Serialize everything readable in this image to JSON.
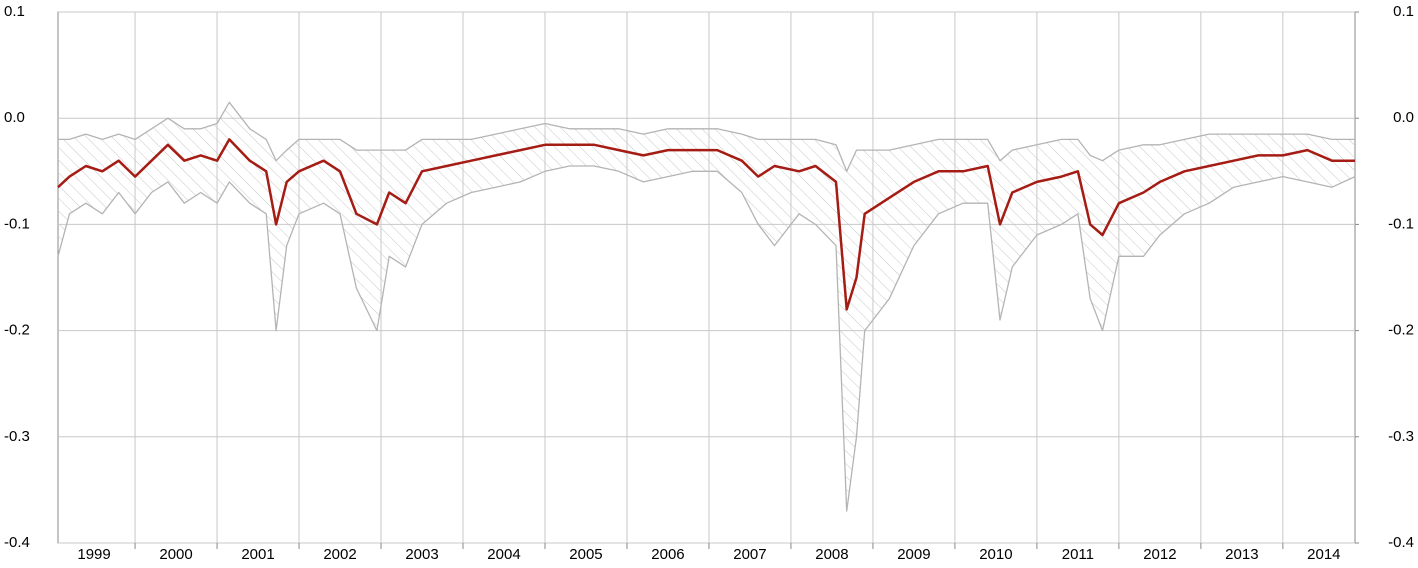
{
  "chart_data": {
    "type": "line",
    "x": [
      1999.06,
      1999.2,
      1999.4,
      1999.6,
      1999.8,
      2000.0,
      2000.2,
      2000.4,
      2000.6,
      2000.8,
      2001.0,
      2001.15,
      2001.4,
      2001.6,
      2001.72,
      2001.85,
      2002.0,
      2002.3,
      2002.5,
      2002.7,
      2002.95,
      2003.1,
      2003.3,
      2003.5,
      2003.8,
      2004.1,
      2004.4,
      2004.7,
      2005.0,
      2005.3,
      2005.6,
      2005.9,
      2006.2,
      2006.5,
      2006.8,
      2007.1,
      2007.4,
      2007.6,
      2007.8,
      2008.1,
      2008.3,
      2008.55,
      2008.68,
      2008.8,
      2008.9,
      2009.2,
      2009.5,
      2009.8,
      2010.1,
      2010.4,
      2010.55,
      2010.7,
      2011.0,
      2011.3,
      2011.5,
      2011.65,
      2011.8,
      2012.0,
      2012.3,
      2012.5,
      2012.8,
      2013.1,
      2013.4,
      2013.7,
      2014.0,
      2014.3,
      2014.6,
      2014.88
    ],
    "series": [
      {
        "color": "#b4b4b4",
        "values": [
          -0.02,
          -0.02,
          -0.015,
          -0.02,
          -0.015,
          -0.02,
          -0.01,
          0.0,
          -0.01,
          -0.01,
          -0.005,
          0.015,
          -0.01,
          -0.02,
          -0.04,
          -0.03,
          -0.02,
          -0.02,
          -0.02,
          -0.03,
          -0.03,
          -0.03,
          -0.03,
          -0.02,
          -0.02,
          -0.02,
          -0.015,
          -0.01,
          -0.005,
          -0.01,
          -0.01,
          -0.01,
          -0.015,
          -0.01,
          -0.01,
          -0.01,
          -0.015,
          -0.02,
          -0.02,
          -0.02,
          -0.02,
          -0.025,
          -0.05,
          -0.03,
          -0.03,
          -0.03,
          -0.025,
          -0.02,
          -0.02,
          -0.02,
          -0.04,
          -0.03,
          -0.025,
          -0.02,
          -0.02,
          -0.035,
          -0.04,
          -0.03,
          -0.025,
          -0.025,
          -0.02,
          -0.015,
          -0.015,
          -0.015,
          -0.015,
          -0.015,
          -0.02,
          -0.02
        ]
      },
      {
        "color": "#b4b4b4",
        "values": [
          -0.13,
          -0.09,
          -0.08,
          -0.09,
          -0.07,
          -0.09,
          -0.07,
          -0.06,
          -0.08,
          -0.07,
          -0.08,
          -0.06,
          -0.08,
          -0.09,
          -0.2,
          -0.12,
          -0.09,
          -0.08,
          -0.09,
          -0.16,
          -0.2,
          -0.13,
          -0.14,
          -0.1,
          -0.08,
          -0.07,
          -0.065,
          -0.06,
          -0.05,
          -0.045,
          -0.045,
          -0.05,
          -0.06,
          -0.055,
          -0.05,
          -0.05,
          -0.07,
          -0.1,
          -0.12,
          -0.09,
          -0.1,
          -0.12,
          -0.37,
          -0.3,
          -0.2,
          -0.17,
          -0.12,
          -0.09,
          -0.08,
          -0.08,
          -0.19,
          -0.14,
          -0.11,
          -0.1,
          -0.09,
          -0.17,
          -0.2,
          -0.13,
          -0.13,
          -0.11,
          -0.09,
          -0.08,
          -0.065,
          -0.06,
          -0.055,
          -0.06,
          -0.065,
          -0.055
        ]
      },
      {
        "color": "#a51c14",
        "values": [
          -0.065,
          -0.055,
          -0.045,
          -0.05,
          -0.04,
          -0.055,
          -0.04,
          -0.025,
          -0.04,
          -0.035,
          -0.04,
          -0.02,
          -0.04,
          -0.05,
          -0.1,
          -0.06,
          -0.05,
          -0.04,
          -0.05,
          -0.09,
          -0.1,
          -0.07,
          -0.08,
          -0.05,
          -0.045,
          -0.04,
          -0.035,
          -0.03,
          -0.025,
          -0.025,
          -0.025,
          -0.03,
          -0.035,
          -0.03,
          -0.03,
          -0.03,
          -0.04,
          -0.055,
          -0.045,
          -0.05,
          -0.045,
          -0.06,
          -0.18,
          -0.15,
          -0.09,
          -0.075,
          -0.06,
          -0.05,
          -0.05,
          -0.045,
          -0.1,
          -0.07,
          -0.06,
          -0.055,
          -0.05,
          -0.1,
          -0.11,
          -0.08,
          -0.07,
          -0.06,
          -0.05,
          -0.045,
          -0.04,
          -0.035,
          -0.035,
          -0.03,
          -0.04,
          -0.04
        ]
      }
    ],
    "xlim": [
      1999.06,
      2014.88
    ],
    "xticks": [
      {
        "value": 1999.5,
        "label": "1999"
      },
      {
        "value": 2000.5,
        "label": "2000"
      },
      {
        "value": 2001.5,
        "label": "2001"
      },
      {
        "value": 2002.5,
        "label": "2002"
      },
      {
        "value": 2003.5,
        "label": "2003"
      },
      {
        "value": 2004.5,
        "label": "2004"
      },
      {
        "value": 2005.5,
        "label": "2005"
      },
      {
        "value": 2006.5,
        "label": "2006"
      },
      {
        "value": 2007.5,
        "label": "2007"
      },
      {
        "value": 2008.5,
        "label": "2008"
      },
      {
        "value": 2009.5,
        "label": "2009"
      },
      {
        "value": 2010.5,
        "label": "2010"
      },
      {
        "value": 2011.5,
        "label": "2011"
      },
      {
        "value": 2012.5,
        "label": "2012"
      },
      {
        "value": 2013.5,
        "label": "2013"
      },
      {
        "value": 2014.5,
        "label": "2014"
      }
    ],
    "year_boundaries": [
      2000,
      2001,
      2002,
      2003,
      2004,
      2005,
      2006,
      2007,
      2008,
      2009,
      2010,
      2011,
      2012,
      2013,
      2014
    ],
    "ylim": [
      -0.4,
      0.1
    ],
    "yticks": [
      0.1,
      {
        "value": 0,
        "label": "0.0"
      },
      -0.1,
      -0.2,
      -0.3,
      -0.4
    ],
    "y2lim": [
      -0.4,
      0.1
    ],
    "y2ticks": [
      0.1,
      {
        "value": 0,
        "label": "0.0"
      },
      -0.1,
      -0.2,
      -0.3,
      -0.4
    ],
    "grid": true
  }
}
